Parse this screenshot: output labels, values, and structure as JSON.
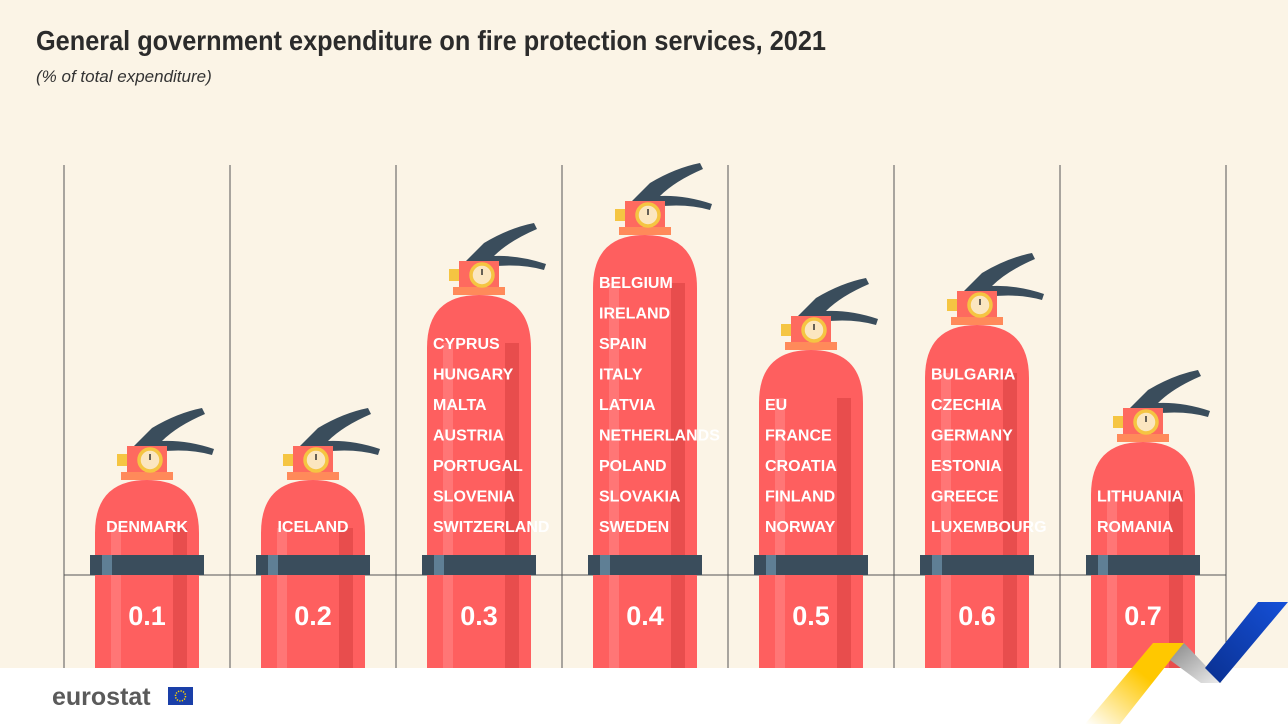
{
  "title": "General government expenditure on fire protection services, 2021",
  "subtitle": "(% of total expenditure)",
  "logo": "eurostat",
  "chart_data": {
    "type": "bar",
    "title": "General government expenditure on fire protection services, 2021",
    "ylabel": "(% of total expenditure)",
    "categories": [
      "0.1",
      "0.2",
      "0.3",
      "0.4",
      "0.5",
      "0.6",
      "0.7"
    ],
    "values": [
      0.1,
      0.2,
      0.3,
      0.4,
      0.5,
      0.6,
      0.7
    ],
    "groups": [
      {
        "value": "0.1",
        "countries": [
          "DENMARK"
        ]
      },
      {
        "value": "0.2",
        "countries": [
          "ICELAND"
        ]
      },
      {
        "value": "0.3",
        "countries": [
          "CYPRUS",
          "HUNGARY",
          "MALTA",
          "AUSTRIA",
          "PORTUGAL",
          "SLOVENIA",
          "SWITZERLAND"
        ]
      },
      {
        "value": "0.4",
        "countries": [
          "BELGIUM",
          "IRELAND",
          "SPAIN",
          "ITALY",
          "LATVIA",
          "NETHERLANDS",
          "POLAND",
          "SLOVAKIA",
          "SWEDEN"
        ]
      },
      {
        "value": "0.5",
        "countries": [
          "EU",
          "FRANCE",
          "CROATIA",
          "FINLAND",
          "NORWAY"
        ]
      },
      {
        "value": "0.6",
        "countries": [
          "BULGARIA",
          "CZECHIA",
          "GERMANY",
          "ESTONIA",
          "GREECE",
          "LUXEMBOURG"
        ]
      },
      {
        "value": "0.7",
        "countries": [
          "LITHUANIA",
          "ROMANIA"
        ]
      }
    ],
    "grid": true,
    "colors": {
      "body": "#fe5f5f",
      "band": "#3a4d5c",
      "background": "#fbf4e6"
    }
  }
}
